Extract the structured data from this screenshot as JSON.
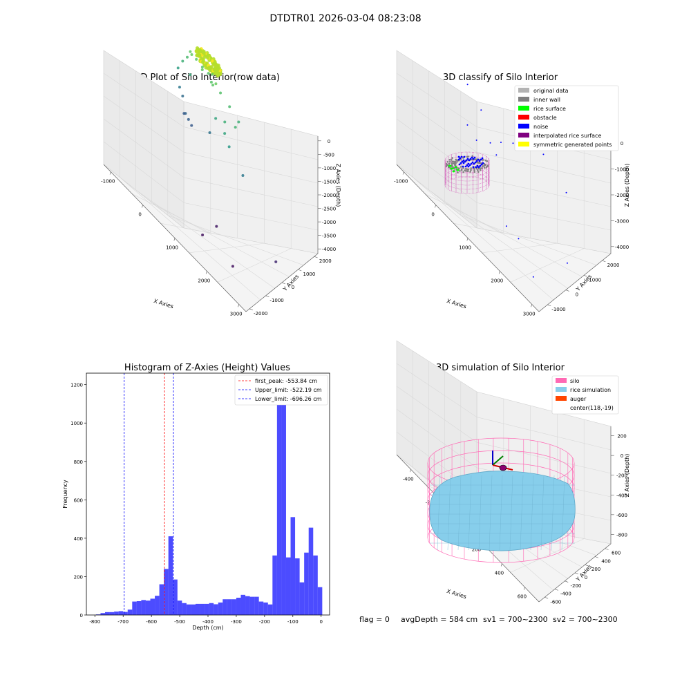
{
  "suptitle": "DTDTR01 2026-03-04 08:23:08",
  "footer": {
    "flag": "flag = 0",
    "avg": "avgDepth = 584 cm",
    "sv1": "sv1 = 700~2300",
    "sv2": "sv2 = 700~2300"
  },
  "chart_data": [
    {
      "type": "scatter",
      "title": "3D Plot of Silo Interior(row data)",
      "xlabel": "X Axies",
      "ylabel": "Y Axies",
      "zlabel": "Z Axies (Depth)",
      "xticks": [
        "-1000",
        "0",
        "1000",
        "2000",
        "3000"
      ],
      "yticks": [
        "-2000",
        "-1000",
        "0",
        "1000",
        "2000"
      ],
      "zticks": [
        "0",
        "-500",
        "-1000",
        "-1500",
        "-2000",
        "-2500",
        "-3000",
        "-3500",
        "-4000"
      ],
      "xlim": [
        -1300,
        3400
      ],
      "ylim": [
        -2100,
        2500
      ],
      "zlim": [
        -4200,
        100
      ],
      "colormap": "viridis (colored by depth)",
      "points": [
        [
          -400,
          1700,
          -1000
        ],
        [
          -200,
          1700,
          -1050
        ],
        [
          0,
          1700,
          -1100
        ],
        [
          200,
          1700,
          -1100
        ],
        [
          300,
          1750,
          -1050
        ],
        [
          -300,
          1600,
          -950
        ],
        [
          100,
          1500,
          -1000
        ],
        [
          400,
          1500,
          -1100
        ],
        [
          500,
          1400,
          -1050
        ],
        [
          600,
          1400,
          -900
        ],
        [
          -500,
          1700,
          -1300
        ],
        [
          -600,
          1600,
          -1500
        ],
        [
          -700,
          1500,
          -1800
        ],
        [
          -300,
          1500,
          -1600
        ],
        [
          700,
          1500,
          -1150
        ],
        [
          1000,
          1500,
          -1300
        ],
        [
          1300,
          1500,
          -1500
        ],
        [
          1100,
          1000,
          -1500
        ],
        [
          1200,
          800,
          -1700
        ],
        [
          1400,
          1100,
          -1400
        ],
        [
          800,
          1000,
          -1700
        ],
        [
          1400,
          700,
          -1900
        ],
        [
          -700,
          1600,
          -2500
        ],
        [
          -600,
          1600,
          -2700
        ],
        [
          -300,
          1200,
          -2800
        ],
        [
          -200,
          1200,
          -2900
        ],
        [
          -400,
          1300,
          -2950
        ],
        [
          -100,
          1200,
          -3000
        ],
        [
          500,
          1200,
          -2600
        ],
        [
          1800,
          800,
          -2500
        ],
        [
          1600,
          -500,
          -3900
        ],
        [
          1500,
          -1200,
          -4000
        ],
        [
          2500,
          -1200,
          -4000
        ],
        [
          3200,
          200,
          -3700
        ]
      ]
    },
    {
      "type": "scatter",
      "title": "3D classify of Silo Interior",
      "xlabel": "X Axies",
      "ylabel": "Y Axies",
      "zlabel": "Z Axies (Depth)",
      "xticks": [
        "-1000",
        "0",
        "1000",
        "2000",
        "3000"
      ],
      "yticks": [
        "-1000",
        "0",
        "1000",
        "2000"
      ],
      "zticks": [
        "0",
        "-1000",
        "-2000",
        "-3000",
        "-4000"
      ],
      "xlim": [
        -1300,
        3400
      ],
      "ylim": [
        -2100,
        2500
      ],
      "zlim": [
        -4200,
        100
      ],
      "legend": [
        {
          "label": "original data",
          "color": "#b3b3b3"
        },
        {
          "label": "inner wall",
          "color": "#808080"
        },
        {
          "label": "rice surface",
          "color": "#00ff00"
        },
        {
          "label": "obstacle",
          "color": "#ff0000"
        },
        {
          "label": "noise",
          "color": "#0000ff"
        },
        {
          "label": "interpolated rice surface",
          "color": "#800080"
        },
        {
          "label": "symmetric generated points",
          "color": "#ffff00"
        }
      ],
      "noise_points": [
        [
          -300,
          500,
          -1500
        ],
        [
          200,
          400,
          -1800
        ],
        [
          1600,
          800,
          -1700
        ],
        [
          2000,
          900,
          -1600
        ],
        [
          800,
          1500,
          -1500
        ],
        [
          1100,
          700,
          -2100
        ],
        [
          -200,
          300,
          -2700
        ],
        [
          100,
          300,
          -2900
        ],
        [
          400,
          600,
          -2800
        ],
        [
          600,
          600,
          -3000
        ],
        [
          2600,
          1200,
          -2400
        ],
        [
          3200,
          100,
          -3700
        ],
        [
          1500,
          -500,
          -4000
        ],
        [
          1900,
          -500,
          -4000
        ],
        [
          2800,
          -1300,
          -4000
        ],
        [
          700,
          700,
          -2500
        ]
      ]
    },
    {
      "type": "bar",
      "title": "Histogram of Z-Axies (Height) Values",
      "xlabel": "Depth (cm)",
      "ylabel": "Frequency",
      "xlim": [
        -830,
        30
      ],
      "ylim": [
        0,
        1260
      ],
      "xticks": [
        -800,
        -700,
        -600,
        -500,
        -400,
        -300,
        -200,
        -100,
        0
      ],
      "yticks": [
        0,
        200,
        400,
        600,
        800,
        1000,
        1200
      ],
      "bin_width": 16,
      "bin_starts": [
        -796,
        -780,
        -764,
        -748,
        -732,
        -716,
        -700,
        -684,
        -668,
        -652,
        -636,
        -620,
        -604,
        -588,
        -572,
        -556,
        -540,
        -524,
        -508,
        -492,
        -476,
        -460,
        -444,
        -428,
        -412,
        -396,
        -380,
        -364,
        -348,
        -332,
        -316,
        -300,
        -284,
        -268,
        -252,
        -236,
        -220,
        -204,
        -188,
        -172,
        -156,
        -140,
        -124,
        -108,
        -92,
        -76,
        -60,
        -44,
        -28,
        -12
      ],
      "values": [
        3,
        10,
        15,
        15,
        18,
        20,
        16,
        28,
        70,
        72,
        78,
        75,
        85,
        100,
        160,
        240,
        410,
        185,
        75,
        62,
        55,
        55,
        58,
        58,
        58,
        62,
        56,
        65,
        82,
        82,
        82,
        90,
        105,
        98,
        95,
        95,
        70,
        65,
        55,
        310,
        1200,
        1200,
        300,
        510,
        295,
        170,
        325,
        455,
        310,
        145
      ],
      "bar_color": "#0000ff",
      "lines": [
        {
          "label": "first_peak: -553.84 cm",
          "x": -553.84,
          "color": "#ff0000"
        },
        {
          "label": "Upper_limit: -522.19 cm",
          "x": -522.19,
          "color": "#0000ff"
        },
        {
          "label": "Lower_limit: -696.26 cm",
          "x": -696.26,
          "color": "#0000ff"
        }
      ],
      "legend_position": "top-right"
    },
    {
      "type": "surface",
      "title": "3D simulation of Silo Interior",
      "xlabel": "X Axies",
      "ylabel": "Y Axies",
      "zlabel": "Z Axies (Depth)",
      "xticks": [
        "-400",
        "-200",
        "0",
        "200",
        "400",
        "600"
      ],
      "yticks": [
        "-600",
        "-400",
        "-200",
        "0",
        "200",
        "400",
        "600"
      ],
      "zticks": [
        "200",
        "0",
        "-200",
        "-400",
        "-600",
        "-800"
      ],
      "legend": [
        {
          "label": "silo",
          "color": "#ff69b4"
        },
        {
          "label": "rice simulation",
          "color": "#87ceeb"
        },
        {
          "label": "auger",
          "color": "#ff4500"
        },
        {
          "label": "center(118,-19)",
          "color": ""
        }
      ]
    }
  ]
}
